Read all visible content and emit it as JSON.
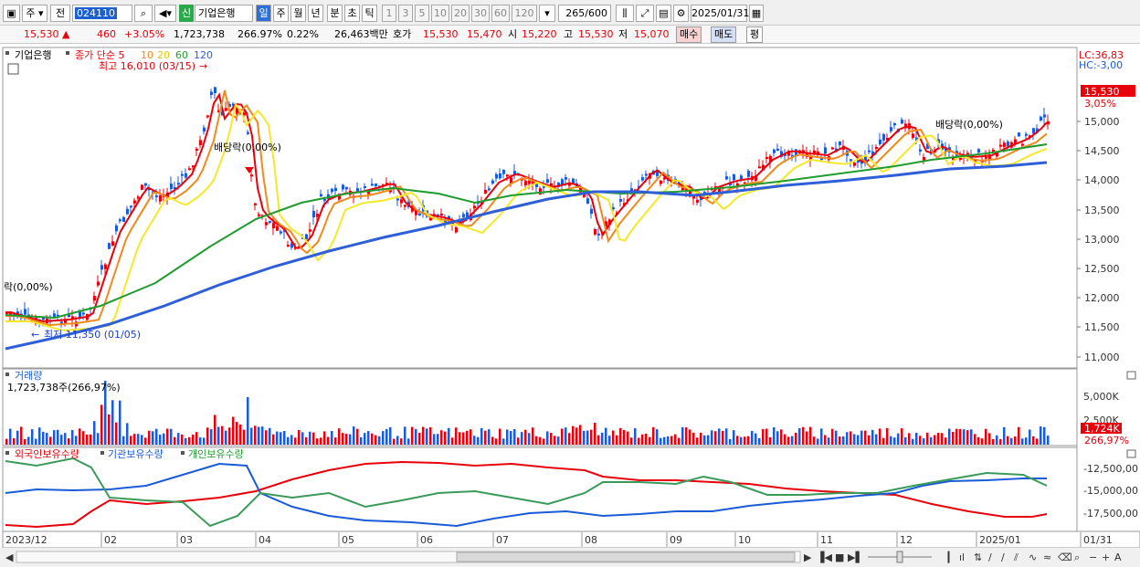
{
  "toolbar": {
    "period_box": "주",
    "prev_label": "전",
    "code": "024110",
    "stock_badge": "신",
    "stock_name": "기업은행",
    "periods": [
      "일",
      "주",
      "월",
      "년",
      "분",
      "초",
      "틱"
    ],
    "intervals": [
      "1",
      "3",
      "5",
      "10",
      "20",
      "30",
      "60",
      "120"
    ],
    "count": "265",
    "total": "/600",
    "date": "2025/01/31"
  },
  "info": {
    "price": "15,530",
    "change": "460",
    "change_pct": "+3.05%",
    "volume": "1,723,738",
    "vol_pct": "266.97%",
    "turnover": "0.22%",
    "amount": "26,463백만",
    "ask_label": "호가",
    "ask": "15,530",
    "bid": "15,470",
    "open_label": "시",
    "open": "15,220",
    "high_label": "고",
    "high": "15,530",
    "low_label": "저",
    "low": "15,070",
    "buy_btn": "매수",
    "sell_btn": "매도",
    "eval_btn": "평"
  },
  "main_chart": {
    "legend_name": "기업은행",
    "legend_ma": "종가 단순",
    "ma_periods": [
      "5",
      "10",
      "20",
      "60",
      "120"
    ],
    "high_note": "최고 16,010 (03/15)",
    "low_note": "최저 11,350 (01/05)",
    "div_note_1": "배당락(0,00%)",
    "div_note_2": "배당락(0,00%)",
    "div_note_3": "락(0,00%)",
    "lc": "LC:36,83",
    "hc": "HC:-3,00",
    "price_tag": "15,530",
    "pct_tag": "3,05%",
    "y_ticks": [
      "15,000",
      "14,500",
      "14,000",
      "13,500",
      "13,000",
      "12,500",
      "12,000",
      "11,500",
      "11,000"
    ],
    "colors": {
      "ma5": "#e8000b",
      "ma10": "#f08a1c",
      "ma20": "#f5e82a",
      "ma60": "#1f9c2e",
      "ma120": "#2f5fd8"
    }
  },
  "volume_chart": {
    "title": "거래량",
    "value": "1,723,738주(266,97%)",
    "y_ticks": [
      "5,000K",
      "2,500K"
    ],
    "tag": "1,724K",
    "tag_pct": "266,97%"
  },
  "holding_chart": {
    "legend": [
      "외국인보유수량",
      "기관보유수량",
      "개인보유수량"
    ],
    "y_ticks": [
      "-12,500,00",
      "-15,000,00",
      "-17,500,00"
    ]
  },
  "x_axis": [
    "2023/12",
    "02",
    "03",
    "04",
    "05",
    "06",
    "07",
    "08",
    "09",
    "10",
    "11",
    "12",
    "2025/01",
    "01/31"
  ]
}
